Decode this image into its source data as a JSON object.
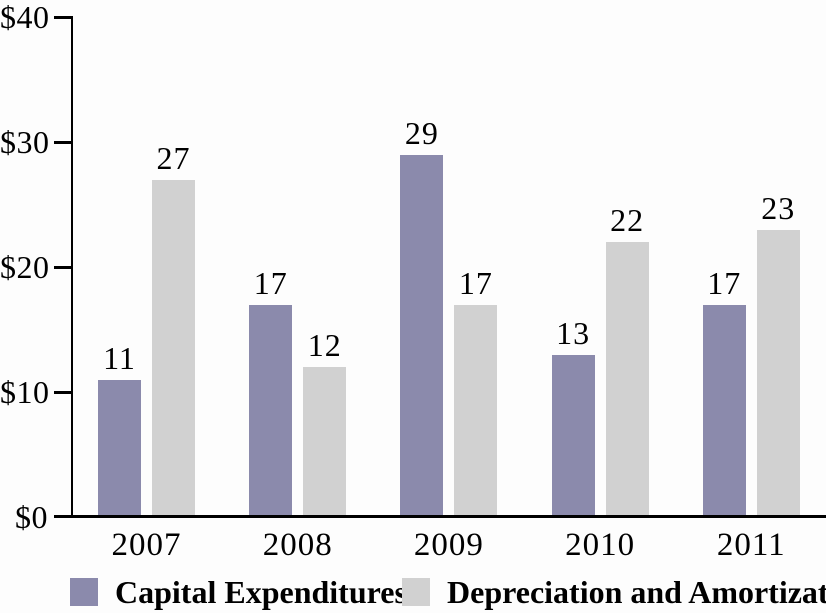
{
  "chart_data": {
    "type": "bar",
    "title": "",
    "xlabel": "",
    "ylabel": "",
    "categories": [
      "2007",
      "2008",
      "2009",
      "2010",
      "2011"
    ],
    "series": [
      {
        "name": "Capital Expenditures",
        "color": "#8B8AAC",
        "values": [
          11,
          17,
          29,
          13,
          17
        ]
      },
      {
        "name": "Depreciation and Amortization",
        "color": "#D1D1D1",
        "values": [
          27,
          12,
          17,
          22,
          23
        ]
      }
    ],
    "ylim": [
      0,
      40
    ],
    "yticks": [
      0,
      10,
      20,
      30,
      40
    ],
    "ytick_labels": [
      "$0",
      "$10",
      "$20",
      "$30",
      "$40"
    ],
    "bar_value_labels": true,
    "grid": false,
    "legend_position": "bottom"
  },
  "colors": {
    "axis": "#000000",
    "text": "#000000",
    "background": "#FDFDFD"
  }
}
